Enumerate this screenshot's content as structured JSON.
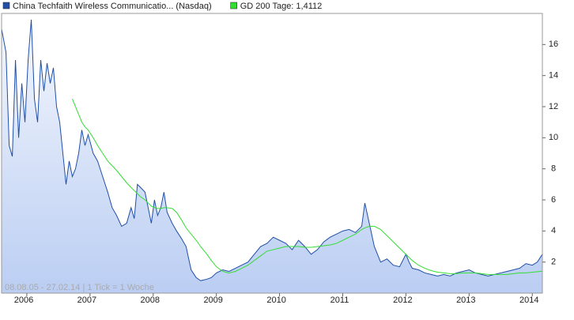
{
  "chart_data": {
    "type": "line",
    "annotation": "08.08.05 - 27.02.14 | 1 Tick = 1 Woche",
    "x": [
      2005.6,
      2005.67,
      2005.72,
      2005.77,
      2005.82,
      2005.87,
      2005.92,
      2005.97,
      2006.02,
      2006.07,
      2006.12,
      2006.17,
      2006.22,
      2006.27,
      2006.32,
      2006.37,
      2006.42,
      2006.47,
      2006.52,
      2006.57,
      2006.62,
      2006.67,
      2006.72,
      2006.77,
      2006.82,
      2006.87,
      2006.92,
      2006.97,
      2007.05,
      2007.12,
      2007.2,
      2007.28,
      2007.35,
      2007.42,
      2007.5,
      2007.58,
      2007.65,
      2007.7,
      2007.75,
      2007.8,
      2007.87,
      2007.92,
      2007.97,
      2008.02,
      2008.07,
      2008.12,
      2008.17,
      2008.22,
      2008.3,
      2008.37,
      2008.45,
      2008.52,
      2008.6,
      2008.68,
      2008.75,
      2008.85,
      2008.92,
      2009.0,
      2009.1,
      2009.2,
      2009.3,
      2009.4,
      2009.5,
      2009.6,
      2009.7,
      2009.8,
      2009.9,
      2010.0,
      2010.1,
      2010.2,
      2010.3,
      2010.4,
      2010.5,
      2010.6,
      2010.7,
      2010.8,
      2010.9,
      2011.0,
      2011.1,
      2011.2,
      2011.3,
      2011.35,
      2011.42,
      2011.5,
      2011.6,
      2011.7,
      2011.8,
      2011.9,
      2012.0,
      2012.05,
      2012.1,
      2012.2,
      2012.3,
      2012.4,
      2012.5,
      2012.6,
      2012.7,
      2012.8,
      2012.9,
      2013.0,
      2013.1,
      2013.2,
      2013.3,
      2013.4,
      2013.5,
      2013.6,
      2013.7,
      2013.8,
      2013.9,
      2014.0,
      2014.08,
      2014.16
    ],
    "series": [
      {
        "name": "China Techfaith Wireless Communicatio... (Nasdaq)",
        "color": "#1f4fa8",
        "values": [
          17.0,
          15.5,
          9.5,
          8.8,
          15.0,
          10.0,
          13.5,
          11.0,
          15.0,
          17.6,
          12.5,
          11.0,
          15.0,
          13.0,
          14.8,
          13.5,
          14.5,
          12.0,
          11.0,
          9.0,
          7.0,
          8.5,
          7.5,
          8.0,
          9.0,
          10.5,
          9.5,
          10.2,
          9.0,
          8.5,
          7.5,
          6.5,
          5.5,
          5.0,
          4.3,
          4.5,
          5.5,
          4.8,
          7.0,
          6.8,
          6.5,
          5.5,
          4.5,
          6.0,
          5.0,
          5.5,
          6.5,
          5.2,
          4.5,
          4.0,
          3.5,
          3.0,
          1.5,
          1.0,
          0.8,
          0.9,
          1.0,
          1.3,
          1.5,
          1.4,
          1.6,
          1.8,
          2.0,
          2.5,
          3.0,
          3.2,
          3.6,
          3.4,
          3.2,
          2.8,
          3.4,
          3.0,
          2.5,
          2.8,
          3.3,
          3.6,
          3.8,
          4.0,
          4.1,
          3.9,
          4.3,
          5.8,
          4.5,
          3.0,
          2.0,
          2.2,
          1.8,
          1.7,
          2.5,
          2.0,
          1.6,
          1.5,
          1.3,
          1.2,
          1.1,
          1.2,
          1.1,
          1.3,
          1.4,
          1.5,
          1.3,
          1.2,
          1.1,
          1.2,
          1.3,
          1.4,
          1.5,
          1.6,
          1.9,
          1.8,
          2.0,
          2.5
        ]
      },
      {
        "name": "GD 200 Tage: 1,4112",
        "color": "#33dd33",
        "values": [
          null,
          null,
          null,
          null,
          null,
          null,
          null,
          null,
          null,
          null,
          null,
          null,
          null,
          null,
          null,
          null,
          null,
          null,
          null,
          null,
          null,
          null,
          12.5,
          12.0,
          11.5,
          11.0,
          10.7,
          10.5,
          10.0,
          9.5,
          9.0,
          8.5,
          8.2,
          7.9,
          7.5,
          7.1,
          6.8,
          6.6,
          6.4,
          6.2,
          6.0,
          5.8,
          5.6,
          5.5,
          5.45,
          5.45,
          5.5,
          5.5,
          5.45,
          5.2,
          4.7,
          4.2,
          3.8,
          3.4,
          3.0,
          2.5,
          2.1,
          1.7,
          1.4,
          1.3,
          1.4,
          1.6,
          1.8,
          2.1,
          2.4,
          2.7,
          2.8,
          2.9,
          3.0,
          3.0,
          3.0,
          2.95,
          2.95,
          3.0,
          3.05,
          3.1,
          3.2,
          3.4,
          3.6,
          3.8,
          4.1,
          4.2,
          4.3,
          4.3,
          4.1,
          3.7,
          3.3,
          2.9,
          2.5,
          2.3,
          2.1,
          1.8,
          1.6,
          1.45,
          1.35,
          1.3,
          1.25,
          1.25,
          1.3,
          1.3,
          1.3,
          1.25,
          1.2,
          1.2,
          1.2,
          1.2,
          1.25,
          1.3,
          1.3,
          1.35,
          1.38,
          1.41
        ]
      }
    ],
    "xlim": [
      2005.6,
      2014.16
    ],
    "xticks": [
      2006,
      2007,
      2008,
      2009,
      2010,
      2011,
      2012,
      2013,
      2014
    ],
    "ylim": [
      0,
      18
    ],
    "yticks": [
      2,
      4,
      6,
      8,
      10,
      12,
      14,
      16
    ],
    "area_color": "#b7cbf2"
  }
}
